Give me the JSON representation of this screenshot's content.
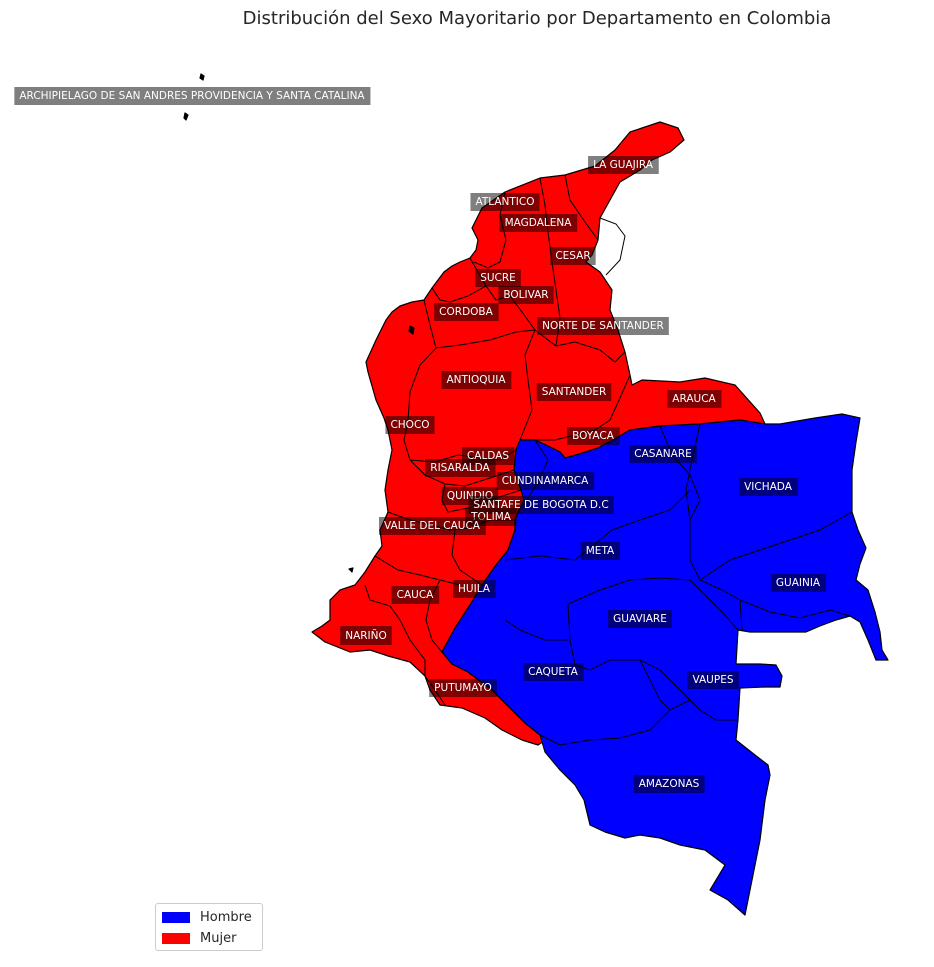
{
  "title": "Distribución del Sexo Mayoritario por Departamento en Colombia",
  "colors": {
    "Hombre": "#0000ff",
    "Mujer": "#ff0000",
    "border": "#000000",
    "label_box": "#000000"
  },
  "legend": {
    "position": "lower-left",
    "items": [
      {
        "label": "Hombre",
        "color": "#0000ff"
      },
      {
        "label": "Mujer",
        "color": "#ff0000"
      }
    ]
  },
  "departments": [
    {
      "name": "ARCHIPIELAGO DE SAN ANDRES PROVIDENCIA Y SANTA CATALINA",
      "majority": "Mujer"
    },
    {
      "name": "LA GUAJIRA",
      "majority": "Mujer"
    },
    {
      "name": "ATLANTICO",
      "majority": "Mujer"
    },
    {
      "name": "MAGDALENA",
      "majority": "Mujer"
    },
    {
      "name": "CESAR",
      "majority": "Mujer"
    },
    {
      "name": "SUCRE",
      "majority": "Mujer"
    },
    {
      "name": "BOLIVAR",
      "majority": "Mujer"
    },
    {
      "name": "CORDOBA",
      "majority": "Mujer"
    },
    {
      "name": "NORTE DE SANTANDER",
      "majority": "Mujer"
    },
    {
      "name": "ANTIOQUIA",
      "majority": "Mujer"
    },
    {
      "name": "SANTANDER",
      "majority": "Mujer"
    },
    {
      "name": "ARAUCA",
      "majority": "Mujer"
    },
    {
      "name": "CHOCO",
      "majority": "Mujer"
    },
    {
      "name": "BOYACA",
      "majority": "Mujer"
    },
    {
      "name": "CASANARE",
      "majority": "Hombre"
    },
    {
      "name": "CALDAS",
      "majority": "Mujer"
    },
    {
      "name": "RISARALDA",
      "majority": "Mujer"
    },
    {
      "name": "CUNDINAMARCA",
      "majority": "Hombre"
    },
    {
      "name": "VICHADA",
      "majority": "Hombre"
    },
    {
      "name": "QUINDIO",
      "majority": "Mujer"
    },
    {
      "name": "SANTAFE DE BOGOTA D.C",
      "majority": "Mujer"
    },
    {
      "name": "TOLIMA",
      "majority": "Mujer"
    },
    {
      "name": "VALLE DEL CAUCA",
      "majority": "Mujer"
    },
    {
      "name": "META",
      "majority": "Hombre"
    },
    {
      "name": "GUAINIA",
      "majority": "Hombre"
    },
    {
      "name": "CAUCA",
      "majority": "Mujer"
    },
    {
      "name": "HUILA",
      "majority": "Mujer"
    },
    {
      "name": "GUAVIARE",
      "majority": "Hombre"
    },
    {
      "name": "NARIÑO",
      "majority": "Mujer"
    },
    {
      "name": "CAQUETA",
      "majority": "Hombre"
    },
    {
      "name": "VAUPES",
      "majority": "Hombre"
    },
    {
      "name": "PUTUMAYO",
      "majority": "Mujer"
    },
    {
      "name": "AMAZONAS",
      "majority": "Hombre"
    }
  ]
}
